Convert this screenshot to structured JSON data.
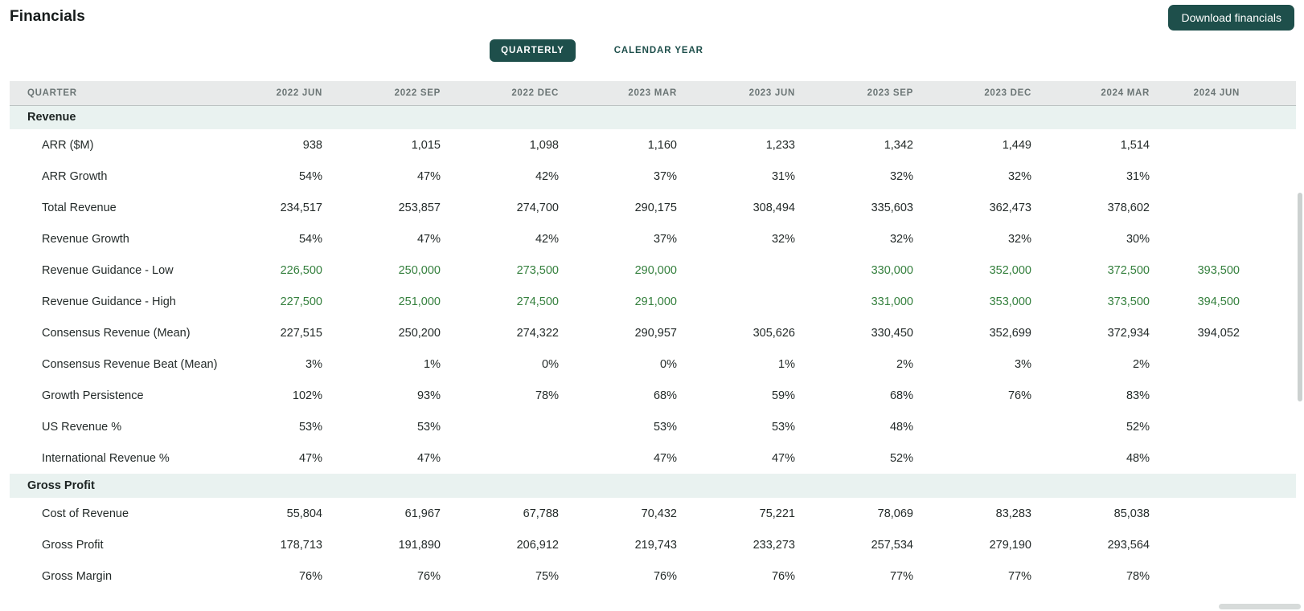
{
  "page": {
    "title": "Financials"
  },
  "toolbar": {
    "download_label": "Download financials"
  },
  "tabs": [
    {
      "label": "QUARTERLY",
      "active": true
    },
    {
      "label": "CALENDAR YEAR",
      "active": false
    }
  ],
  "colors": {
    "teal": "#1e4f4b",
    "section_bg": "#e9f2f0",
    "header_bg": "#e8eaea",
    "guidance_green": "#35803e"
  },
  "table": {
    "label_header": "QUARTER",
    "columns": [
      "2022 JUN",
      "2022 SEP",
      "2022 DEC",
      "2023 MAR",
      "2023 JUN",
      "2023 SEP",
      "2023 DEC",
      "2024 MAR",
      "2024 JUN"
    ],
    "sections": [
      {
        "title": "Revenue",
        "rows": [
          {
            "label": "ARR ($M)",
            "green": false,
            "values": [
              "938",
              "1,015",
              "1,098",
              "1,160",
              "1,233",
              "1,342",
              "1,449",
              "1,514",
              ""
            ]
          },
          {
            "label": "ARR Growth",
            "green": false,
            "values": [
              "54%",
              "47%",
              "42%",
              "37%",
              "31%",
              "32%",
              "32%",
              "31%",
              ""
            ]
          },
          {
            "label": "Total Revenue",
            "green": false,
            "values": [
              "234,517",
              "253,857",
              "274,700",
              "290,175",
              "308,494",
              "335,603",
              "362,473",
              "378,602",
              ""
            ]
          },
          {
            "label": "Revenue Growth",
            "green": false,
            "values": [
              "54%",
              "47%",
              "42%",
              "37%",
              "32%",
              "32%",
              "32%",
              "30%",
              ""
            ]
          },
          {
            "label": "Revenue Guidance - Low",
            "green": true,
            "values": [
              "226,500",
              "250,000",
              "273,500",
              "290,000",
              "",
              "330,000",
              "352,000",
              "372,500",
              "393,500"
            ]
          },
          {
            "label": "Revenue Guidance - High",
            "green": true,
            "values": [
              "227,500",
              "251,000",
              "274,500",
              "291,000",
              "",
              "331,000",
              "353,000",
              "373,500",
              "394,500"
            ]
          },
          {
            "label": "Consensus Revenue (Mean)",
            "green": false,
            "values": [
              "227,515",
              "250,200",
              "274,322",
              "290,957",
              "305,626",
              "330,450",
              "352,699",
              "372,934",
              "394,052"
            ]
          },
          {
            "label": "Consensus Revenue Beat (Mean)",
            "green": false,
            "values": [
              "3%",
              "1%",
              "0%",
              "0%",
              "1%",
              "2%",
              "3%",
              "2%",
              ""
            ]
          },
          {
            "label": "Growth Persistence",
            "green": false,
            "values": [
              "102%",
              "93%",
              "78%",
              "68%",
              "59%",
              "68%",
              "76%",
              "83%",
              ""
            ]
          },
          {
            "label": "US Revenue %",
            "green": false,
            "values": [
              "53%",
              "53%",
              "",
              "53%",
              "53%",
              "48%",
              "",
              "52%",
              ""
            ]
          },
          {
            "label": "International Revenue %",
            "green": false,
            "values": [
              "47%",
              "47%",
              "",
              "47%",
              "47%",
              "52%",
              "",
              "48%",
              ""
            ]
          }
        ]
      },
      {
        "title": "Gross Profit",
        "rows": [
          {
            "label": "Cost of Revenue",
            "green": false,
            "values": [
              "55,804",
              "61,967",
              "67,788",
              "70,432",
              "75,221",
              "78,069",
              "83,283",
              "85,038",
              ""
            ]
          },
          {
            "label": "Gross Profit",
            "green": false,
            "values": [
              "178,713",
              "191,890",
              "206,912",
              "219,743",
              "233,273",
              "257,534",
              "279,190",
              "293,564",
              ""
            ]
          },
          {
            "label": "Gross Margin",
            "green": false,
            "values": [
              "76%",
              "76%",
              "75%",
              "76%",
              "76%",
              "77%",
              "77%",
              "78%",
              ""
            ]
          }
        ]
      }
    ]
  }
}
